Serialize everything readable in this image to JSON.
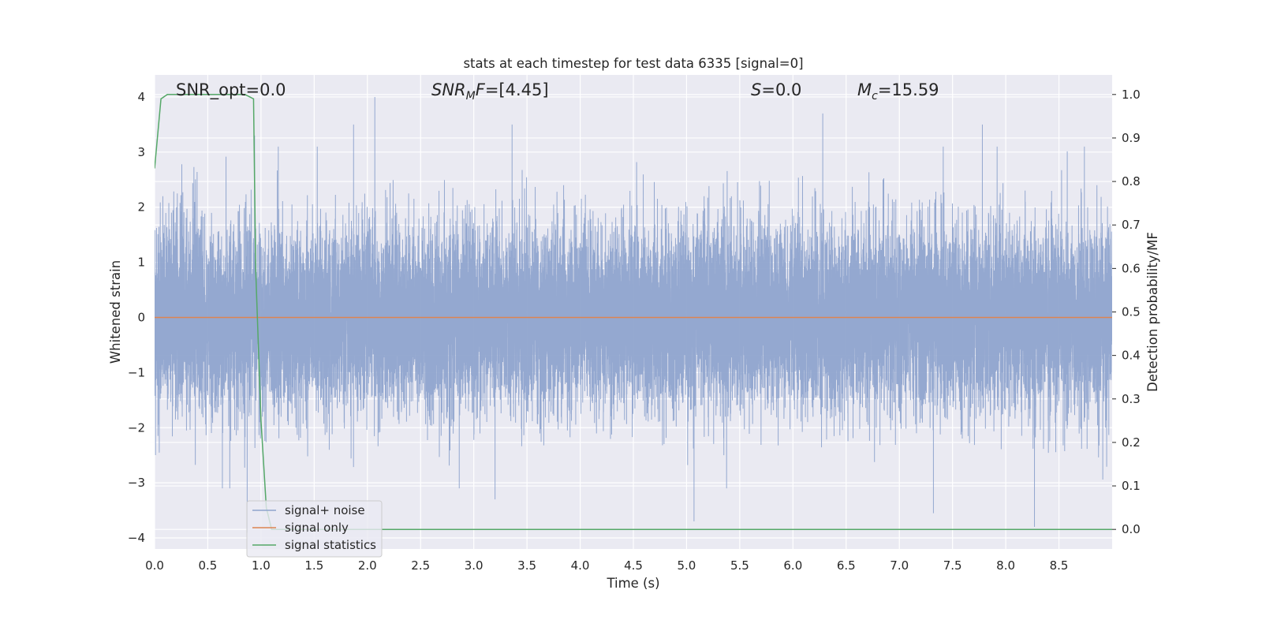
{
  "chart_data": {
    "type": "line",
    "title": "stats at each timestep for test data 6335 [signal=0]",
    "xlabel": "Time (s)",
    "ylabel": "Whitened strain",
    "ylabel_right": "Detection probability/MF",
    "xlim": [
      0.0,
      9.0
    ],
    "ylim": [
      -4.2,
      4.4
    ],
    "ylim_right": [
      -0.045,
      1.045
    ],
    "x_ticks": [
      "0.0",
      "0.5",
      "1.0",
      "1.5",
      "2.0",
      "2.5",
      "3.0",
      "3.5",
      "4.0",
      "4.5",
      "5.0",
      "5.5",
      "6.0",
      "6.5",
      "7.0",
      "7.5",
      "8.0",
      "8.5"
    ],
    "y_ticks": [
      "−4",
      "−3",
      "−2",
      "−1",
      "0",
      "1",
      "2",
      "3",
      "4"
    ],
    "y_right_ticks": [
      "0.0",
      "0.1",
      "0.2",
      "0.3",
      "0.4",
      "0.5",
      "0.6",
      "0.7",
      "0.8",
      "0.9",
      "1.0"
    ],
    "grid": true,
    "legend_position": "lower-left",
    "annotations": {
      "snr_opt": "SNR_opt=0.0",
      "snr_mf_name": "SNR",
      "snr_mf_sub": "M",
      "snr_mf_suffix": "F",
      "snr_mf_value": "=[4.45]",
      "s_name": "S",
      "s_value": "=0.0",
      "mc_name": "M",
      "mc_sub": "c",
      "mc_value": "=15.59"
    },
    "series": [
      {
        "name": "signal+ noise",
        "color": "#8fa4cd",
        "axis": "left",
        "noise_description": "dense whitened noise, roughly uniform amplitude across the full time range",
        "duration": 9.0,
        "sample_rate": 2048,
        "peaks": [
          {
            "x": 2.07,
            "y": 4.0
          },
          {
            "x": 1.87,
            "y": 3.5
          },
          {
            "x": 6.28,
            "y": 3.7
          },
          {
            "x": 7.78,
            "y": 3.5
          },
          {
            "x": 3.36,
            "y": 3.5
          },
          {
            "x": 0.94,
            "y": 3.3
          },
          {
            "x": 5.07,
            "y": -3.7
          },
          {
            "x": 8.27,
            "y": -3.8
          },
          {
            "x": 7.32,
            "y": -3.55
          },
          {
            "x": 3.2,
            "y": -3.3
          },
          {
            "x": 0.87,
            "y": -3.9
          }
        ]
      },
      {
        "name": "signal only",
        "color": "#dd8452",
        "axis": "left",
        "x": [
          0.0,
          9.0
        ],
        "y": [
          0.0,
          0.0
        ]
      },
      {
        "name": "signal statistics",
        "color": "#55a868",
        "axis": "right",
        "x": [
          0.0,
          0.06,
          0.12,
          0.25,
          0.5,
          0.75,
          0.85,
          0.93,
          0.95,
          1.0,
          1.05,
          1.1,
          1.2,
          2.0,
          4.0,
          6.0,
          8.0,
          9.0
        ],
        "y": [
          0.83,
          0.99,
          1.0,
          1.0,
          1.0,
          1.0,
          1.0,
          0.99,
          0.6,
          0.25,
          0.05,
          0.0,
          0.0,
          0.0,
          0.0,
          0.0,
          0.0,
          0.0
        ]
      }
    ]
  }
}
